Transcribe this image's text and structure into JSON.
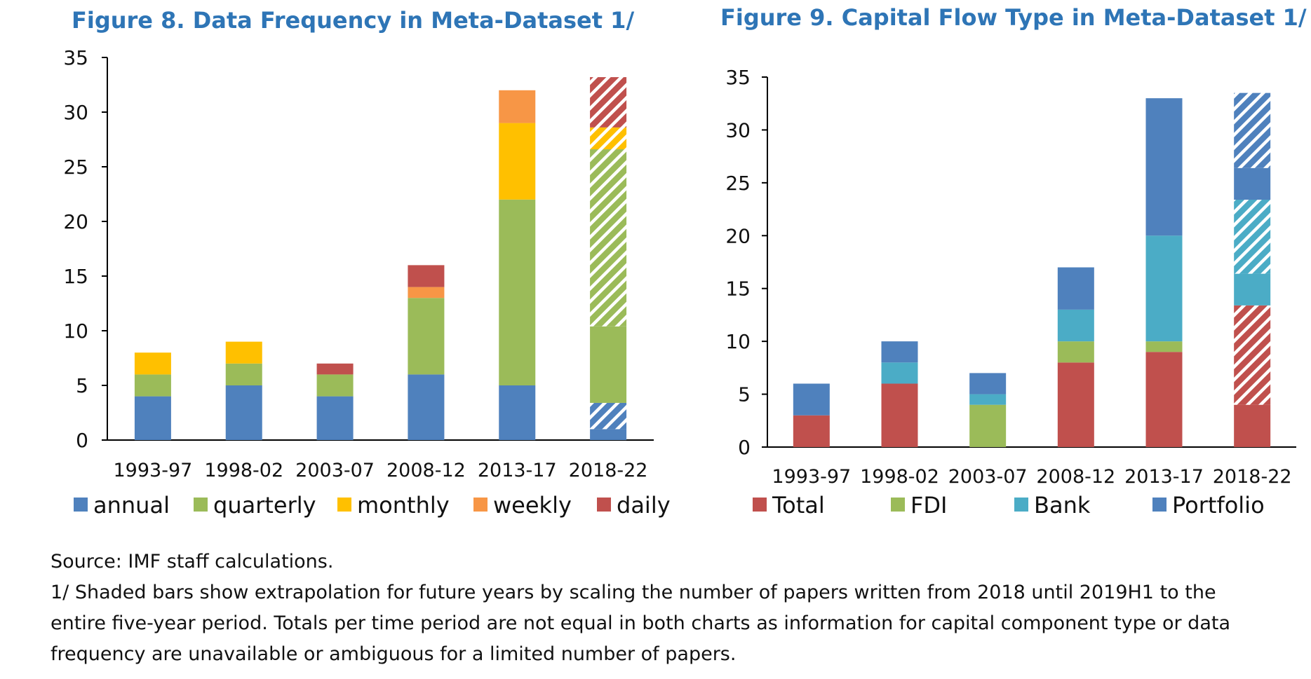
{
  "chart_data": [
    {
      "type": "bar",
      "stacked": true,
      "title": "Figure 8. Data Frequency in Meta-Dataset  1/",
      "categories": [
        "1993-97",
        "1998-02",
        "2003-07",
        "2008-12",
        "2013-17",
        "2018-22"
      ],
      "ylim": [
        0,
        35
      ],
      "yticks": [
        0,
        5,
        10,
        15,
        20,
        25,
        30,
        35
      ],
      "legend_position": "bottom",
      "grid": false,
      "series": [
        {
          "name": "annual",
          "color": "#4F81BD",
          "values": [
            4,
            5,
            4,
            6,
            5,
            1
          ],
          "extrapolated_values": [
            0,
            0,
            0,
            0,
            0,
            2.4
          ]
        },
        {
          "name": "quarterly",
          "color": "#9BBB59",
          "values": [
            2,
            2,
            2,
            7,
            17,
            7
          ],
          "extrapolated_values": [
            0,
            0,
            0,
            0,
            0,
            16.2
          ]
        },
        {
          "name": "monthly",
          "color": "#FFC000",
          "values": [
            2,
            2,
            0,
            0,
            7,
            0
          ],
          "extrapolated_values": [
            0,
            0,
            0,
            0,
            0,
            2
          ]
        },
        {
          "name": "weekly",
          "color": "#F79646",
          "values": [
            0,
            0,
            0,
            1,
            3,
            0
          ],
          "extrapolated_values": [
            0,
            0,
            0,
            0,
            0,
            0
          ]
        },
        {
          "name": "daily",
          "color": "#C0504D",
          "values": [
            0,
            0,
            1,
            2,
            0,
            0
          ],
          "extrapolated_values": [
            0,
            0,
            0,
            0,
            0,
            4.6
          ]
        }
      ]
    },
    {
      "type": "bar",
      "stacked": true,
      "title": "Figure 9. Capital Flow Type in Meta-Dataset  1/",
      "categories": [
        "1993-97",
        "1998-02",
        "2003-07",
        "2008-12",
        "2013-17",
        "2018-22"
      ],
      "ylim": [
        0,
        35
      ],
      "yticks": [
        0,
        5,
        10,
        15,
        20,
        25,
        30,
        35
      ],
      "legend_position": "bottom",
      "grid": false,
      "series": [
        {
          "name": "Total",
          "color": "#C0504D",
          "values": [
            3,
            6,
            0,
            8,
            9,
            4
          ],
          "extrapolated_values": [
            0,
            0,
            0,
            0,
            0,
            9.4
          ]
        },
        {
          "name": "FDI",
          "color": "#9BBB59",
          "values": [
            0,
            0,
            4,
            2,
            1,
            0
          ],
          "extrapolated_values": [
            0,
            0,
            0,
            0,
            0,
            0
          ]
        },
        {
          "name": "Bank",
          "color": "#4BACC6",
          "values": [
            0,
            2,
            1,
            3,
            10,
            3
          ],
          "extrapolated_values": [
            0,
            0,
            0,
            0,
            0,
            7
          ]
        },
        {
          "name": "Portfolio",
          "color": "#4F81BD",
          "values": [
            3,
            2,
            2,
            4,
            13,
            3
          ],
          "extrapolated_values": [
            0,
            0,
            0,
            0,
            0,
            7.1
          ]
        }
      ]
    }
  ],
  "footnotes": {
    "source": "Source: IMF staff  calculations.",
    "note_lines": [
      "1/ Shaded bars show extrapolation for future years by scaling the number of papers written  from 2018  until 2019H1  to the",
      "entire five-year period. Totals  per time period are not equal in both charts as information for capital  component type or data",
      "frequency are unavailable or  ambiguous for a limited  number of papers."
    ]
  }
}
